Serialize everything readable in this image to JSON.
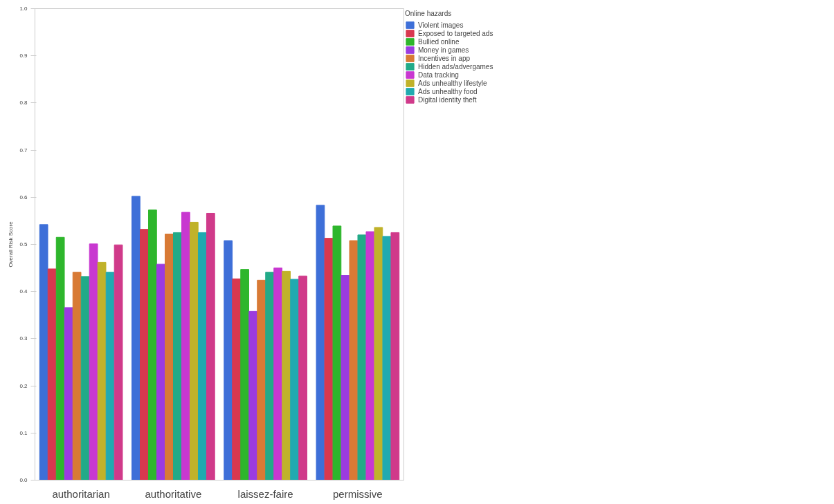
{
  "chart_data": {
    "type": "bar",
    "ylabel": "Overall Risk Score",
    "legend_title": "Online hazards",
    "legend": "top right",
    "grid": false,
    "categories": [
      "authoritarian",
      "authoritative",
      "laissez-faire",
      "permissive"
    ],
    "ylim": [
      0,
      1
    ],
    "yticks": [
      {
        "value": 0,
        "label": "0.0"
      },
      0.1,
      0.2,
      0.3,
      0.4,
      0.5,
      0.6,
      0.7,
      0.8,
      0.9,
      {
        "value": 1,
        "label": "1.0"
      }
    ],
    "series": [
      {
        "name": "Violent images",
        "color": "#3e6fd8",
        "values": [
          0.542,
          0.602,
          0.508,
          0.583
        ]
      },
      {
        "name": "Exposed to targeted ads",
        "color": "#d8384f",
        "values": [
          0.448,
          0.532,
          0.427,
          0.513
        ]
      },
      {
        "name": "Bullied online",
        "color": "#2eb62c",
        "values": [
          0.515,
          0.573,
          0.447,
          0.539
        ]
      },
      {
        "name": "Money in games",
        "color": "#9b3be0",
        "values": [
          0.366,
          0.458,
          0.358,
          0.434
        ]
      },
      {
        "name": "Incentives in app",
        "color": "#d87a35",
        "values": [
          0.441,
          0.522,
          0.424,
          0.508
        ]
      },
      {
        "name": "Hidden ads/advergames",
        "color": "#22aa88",
        "values": [
          0.432,
          0.525,
          0.441,
          0.52
        ]
      },
      {
        "name": "Data tracking",
        "color": "#c838d0",
        "values": [
          0.501,
          0.568,
          0.45,
          0.527
        ]
      },
      {
        "name": "Ads unhealthy lifestyle",
        "color": "#c0b22a",
        "values": [
          0.462,
          0.547,
          0.443,
          0.536
        ]
      },
      {
        "name": "Ads unhealthy food",
        "color": "#20aab0",
        "values": [
          0.441,
          0.525,
          0.426,
          0.517
        ]
      },
      {
        "name": "Digital identity theft",
        "color": "#d03a8a",
        "values": [
          0.499,
          0.566,
          0.433,
          0.525
        ]
      }
    ]
  }
}
